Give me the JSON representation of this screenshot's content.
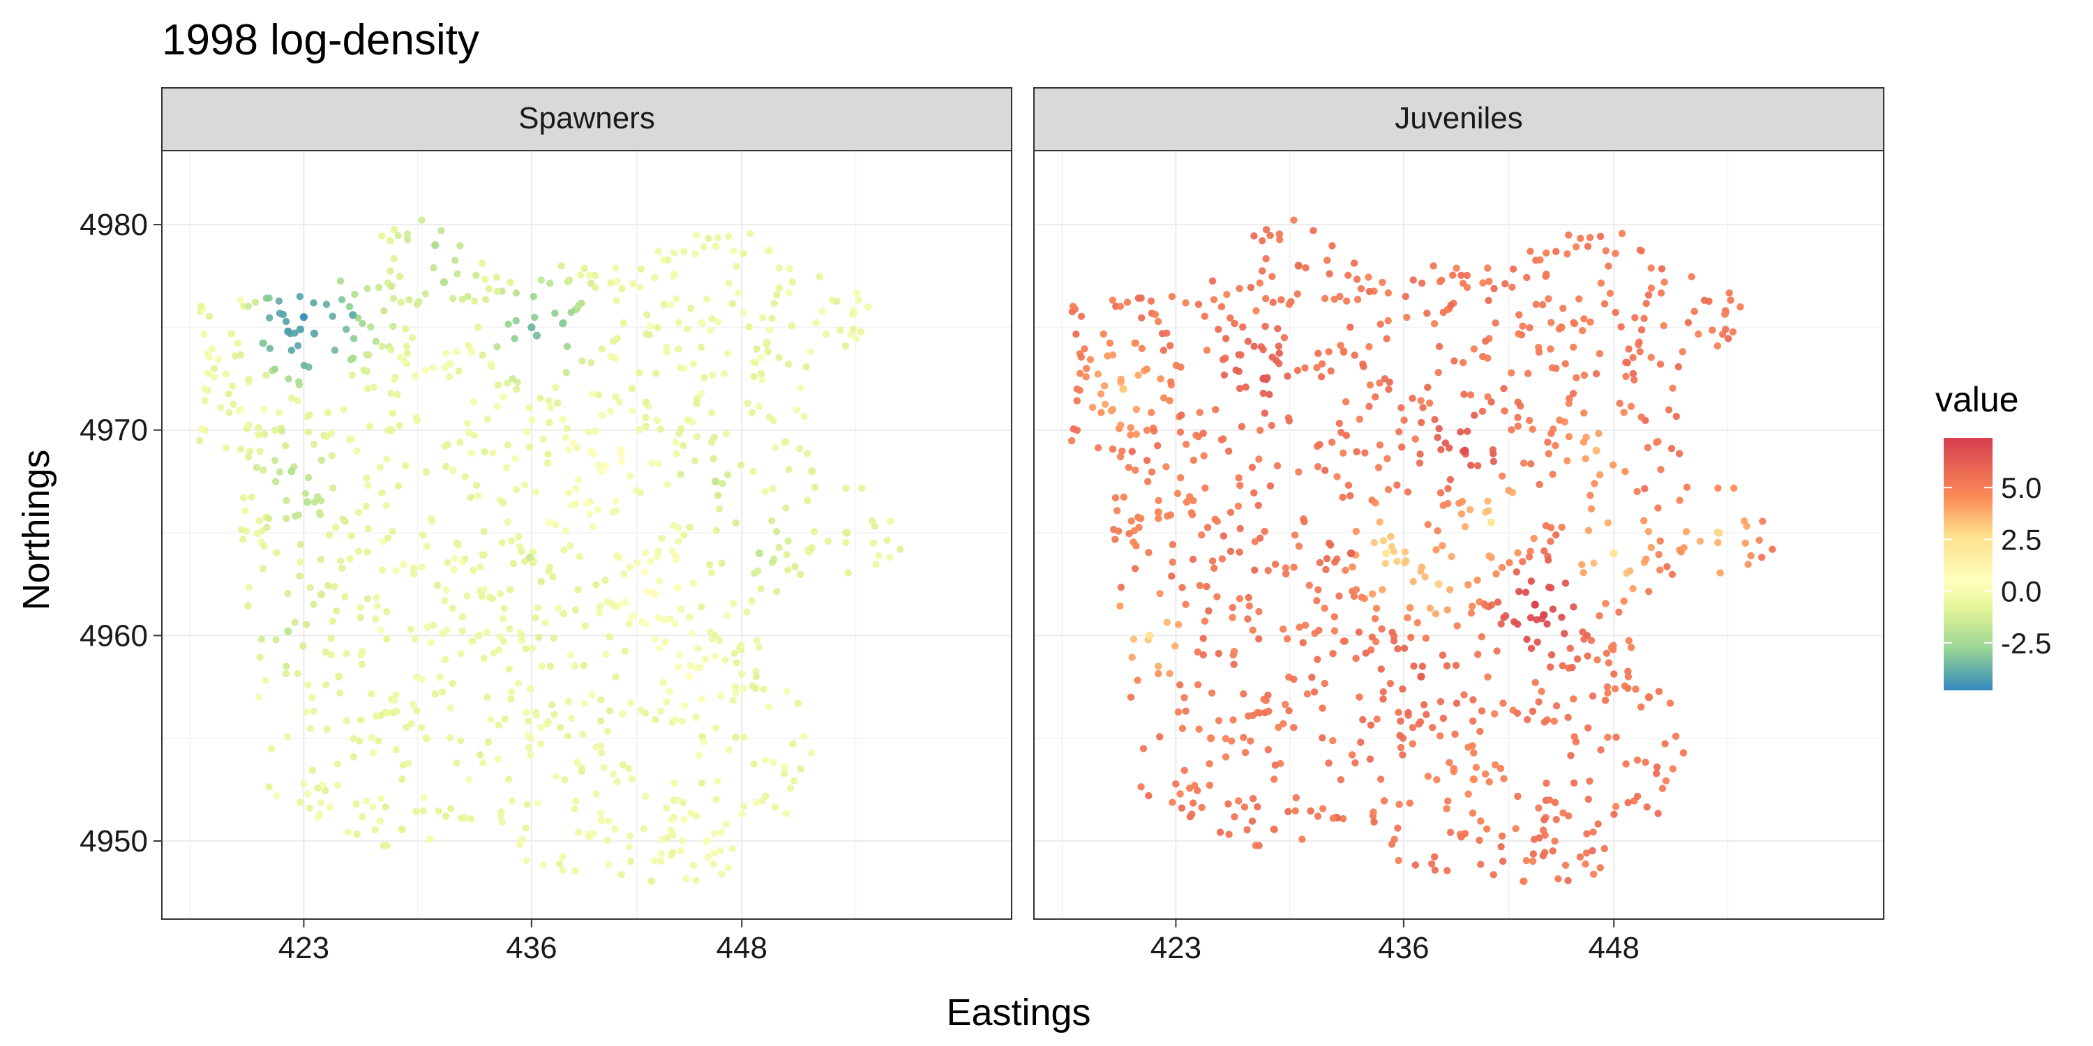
{
  "title": "1998 log-density",
  "chart_data": {
    "type": "scatter",
    "title": "1998 log-density",
    "xlabel": "Eastings",
    "ylabel": "Northings",
    "xlim": [
      414.9,
      463.4
    ],
    "ylim": [
      4946.2,
      4983.6
    ],
    "x_ticks": [
      423,
      436,
      448
    ],
    "y_ticks": [
      4950,
      4960,
      4970,
      4980
    ],
    "grid": true,
    "legend": {
      "title": "value",
      "position": "right",
      "type": "colorbar",
      "palette": "Spectral",
      "range": [
        -4.8,
        7.4
      ],
      "ticks": [
        5.0,
        2.5,
        0.0,
        -2.5
      ],
      "tick_labels": [
        "5.0",
        "2.5",
        "0.0",
        "-2.5"
      ],
      "stops": [
        {
          "value": -4.8,
          "color": "#3288bd"
        },
        {
          "value": -2.8,
          "color": "#99d594"
        },
        {
          "value": -0.8,
          "color": "#e6f598"
        },
        {
          "value": 0.5,
          "color": "#ffffbf"
        },
        {
          "value": 2.7,
          "color": "#fee08b"
        },
        {
          "value": 4.5,
          "color": "#fc8d59"
        },
        {
          "value": 7.4,
          "color": "#d53e4f"
        }
      ]
    },
    "panels": [
      {
        "label": "Spawners",
        "value_range": [
          -4.5,
          0.8
        ],
        "points": [
          {
            "x": 422.1,
            "y": 4974.8,
            "value": -4.2
          },
          {
            "x": 422.8,
            "y": 4974.9,
            "value": -4.0
          },
          {
            "x": 423.0,
            "y": 4975.5,
            "value": -4.5
          },
          {
            "x": 423.6,
            "y": 4974.7,
            "value": -3.9
          },
          {
            "x": 425.8,
            "y": 4975.6,
            "value": -3.8
          },
          {
            "x": 436.0,
            "y": 4975.0,
            "value": -3.5
          },
          {
            "x": 436.3,
            "y": 4974.6,
            "value": -3.3
          },
          {
            "x": 437.8,
            "y": 4975.2,
            "value": -3.0
          },
          {
            "x": 430.5,
            "y": 4979.0,
            "value": -2.2
          },
          {
            "x": 431.0,
            "y": 4977.2,
            "value": -2.0
          },
          {
            "x": 422.3,
            "y": 4968.0,
            "value": -2.0
          },
          {
            "x": 423.2,
            "y": 4966.5,
            "value": -1.9
          },
          {
            "x": 422.1,
            "y": 4960.2,
            "value": -1.8
          },
          {
            "x": 449.0,
            "y": 4964.0,
            "value": -1.7
          },
          {
            "x": 446.5,
            "y": 4967.5,
            "value": -1.6
          },
          {
            "x": 435.9,
            "y": 4963.8,
            "value": -1.5
          },
          {
            "x": 424.0,
            "y": 4962.0,
            "value": -1.2
          },
          {
            "x": 428.0,
            "y": 4977.0,
            "value": -1.3
          },
          {
            "x": 454.0,
            "y": 4965.0,
            "value": -1.0
          },
          {
            "x": 452.0,
            "y": 4968.0,
            "value": -0.9
          },
          {
            "x": 440.0,
            "y": 4968.0,
            "value": 0.6
          },
          {
            "x": 443.0,
            "y": 4962.0,
            "value": 0.7
          },
          {
            "x": 437.0,
            "y": 4965.5,
            "value": 0.3
          },
          {
            "x": 445.0,
            "y": 4958.0,
            "value": 0.5
          },
          {
            "x": 430.0,
            "y": 4955.0,
            "value": -0.6
          },
          {
            "x": 440.0,
            "y": 4951.0,
            "value": 0.0
          },
          {
            "x": 425.0,
            "y": 4958.0,
            "value": -0.8
          },
          {
            "x": 446.0,
            "y": 4950.0,
            "value": 0.2
          },
          {
            "x": 433.0,
            "y": 4960.0,
            "value": -0.4
          },
          {
            "x": 428.0,
            "y": 4970.0,
            "value": -0.7
          }
        ]
      },
      {
        "label": "Juveniles",
        "value_range": [
          1.5,
          7.4
        ],
        "points": [
          {
            "x": 443.5,
            "y": 4961.5,
            "value": 7.2
          },
          {
            "x": 444.0,
            "y": 4961.0,
            "value": 7.0
          },
          {
            "x": 439.5,
            "y": 4969.0,
            "value": 6.8
          },
          {
            "x": 428.0,
            "y": 4972.5,
            "value": 6.5
          },
          {
            "x": 437.0,
            "y": 4958.0,
            "value": 6.2
          },
          {
            "x": 433.0,
            "y": 4964.0,
            "value": 6.0
          },
          {
            "x": 435.0,
            "y": 4964.0,
            "value": 2.0
          },
          {
            "x": 441.0,
            "y": 4965.5,
            "value": 2.3
          },
          {
            "x": 454.0,
            "y": 4965.0,
            "value": 2.8
          },
          {
            "x": 421.5,
            "y": 4960.0,
            "value": 2.5
          },
          {
            "x": 448.0,
            "y": 4964.0,
            "value": 2.2
          },
          {
            "x": 420.0,
            "y": 4972.0,
            "value": 3.2
          },
          {
            "x": 447.0,
            "y": 4969.0,
            "value": 3.5
          },
          {
            "x": 438.0,
            "y": 4962.5,
            "value": 3.0
          },
          {
            "x": 425.0,
            "y": 4955.0,
            "value": 4.8
          },
          {
            "x": 440.0,
            "y": 4953.0,
            "value": 4.5
          },
          {
            "x": 450.0,
            "y": 4957.0,
            "value": 5.2
          },
          {
            "x": 430.0,
            "y": 4978.0,
            "value": 5.5
          },
          {
            "x": 445.0,
            "y": 4975.0,
            "value": 5.0
          },
          {
            "x": 422.0,
            "y": 4966.0,
            "value": 4.6
          }
        ]
      }
    ]
  }
}
